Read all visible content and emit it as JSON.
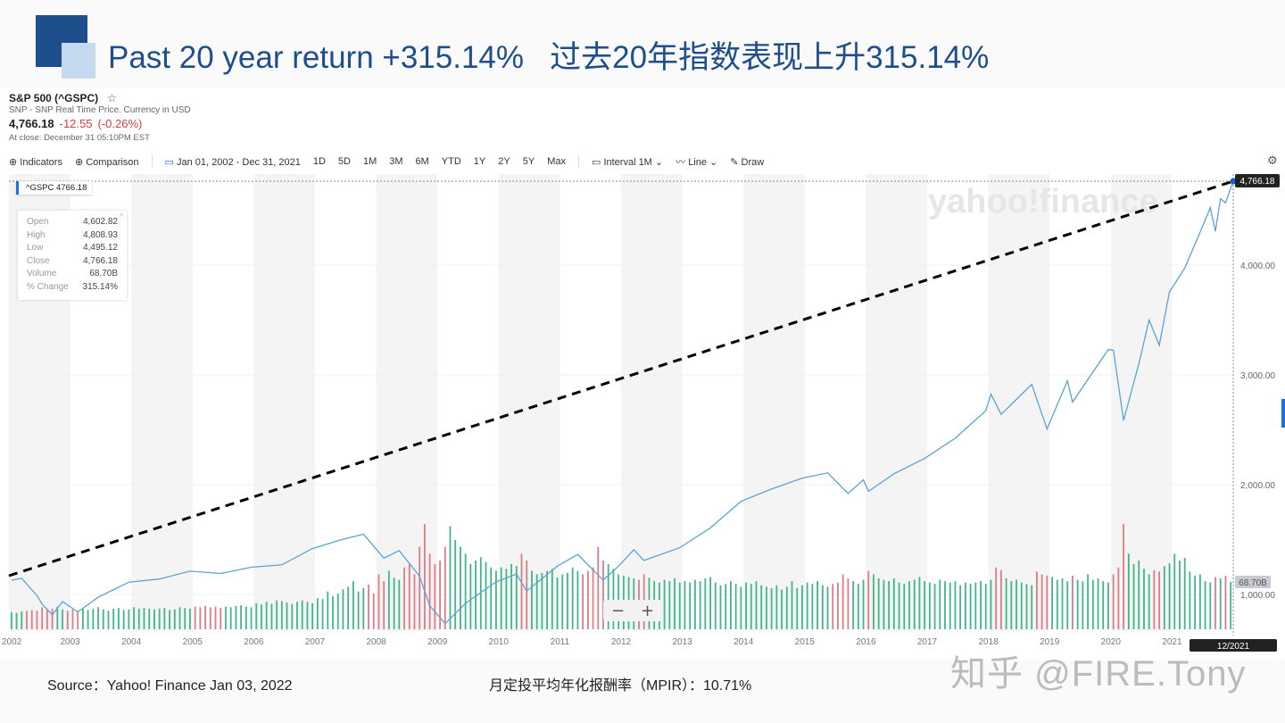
{
  "slide": {
    "title": "Past 20 year return +315.14%   过去20年指数表现上升315.14%",
    "source": "Source：Yahoo! Finance Jan 03, 2022",
    "mpir": "月定投平均年化报酬率（MPIR）：10.71%",
    "watermark": "知乎 @FIRE.Tony"
  },
  "quote": {
    "symbol": "S&P 500 (^GSPC)",
    "star_icon": "☆",
    "subtitle": "SNP - SNP Real Time Price. Currency in USD",
    "price": "4,766.18",
    "change": "-12.55",
    "change_pct": "(-0.26%)",
    "close_time": "At close: December 31 05:10PM EST"
  },
  "toolbar": {
    "indicators": "⊕ Indicators",
    "comparison": "⊕ Comparison",
    "date_range": "Jan 01, 2002 - Dec 31, 2021",
    "ranges": [
      "1D",
      "5D",
      "1M",
      "3M",
      "6M",
      "YTD",
      "1Y",
      "2Y",
      "5Y",
      "Max"
    ],
    "interval": "Interval 1M ⌄",
    "chart_type": "Line ⌄",
    "draw": "Draw",
    "settings_icon": "⚙"
  },
  "legend": "^GSPC 4766.18",
  "tooltip": {
    "rows": [
      [
        "Open",
        "4,602.82"
      ],
      [
        "High",
        "4,808.93"
      ],
      [
        "Low",
        "4,495.12"
      ],
      [
        "Close",
        "4,766.18"
      ],
      [
        "Volume",
        "68.70B"
      ],
      [
        "% Change",
        "315.14%"
      ]
    ]
  },
  "zoom_controls": {
    "minus": "−",
    "plus": "+"
  },
  "colors": {
    "line": "#5ba3d0",
    "up": "#3fb68b",
    "down": "#e07b85",
    "title": "#1f4e8c"
  },
  "chart_data": {
    "type": "line",
    "title": "",
    "xlabel": "",
    "ylabel": "",
    "x_ticks": [
      "2002",
      "2003",
      "2004",
      "2005",
      "2006",
      "2007",
      "2008",
      "2009",
      "2010",
      "2011",
      "2012",
      "2013",
      "2014",
      "2015",
      "2016",
      "2017",
      "2018",
      "2019",
      "2020",
      "2021"
    ],
    "y_ticks": [
      "1,000.00",
      "2,000.00",
      "3,000.00",
      "4,000.00"
    ],
    "ylim": [
      600,
      4800
    ],
    "last_price_label": "4,766.18",
    "last_volume_label": "68.70B",
    "crosshair_date": "12/2021",
    "grid": true,
    "series": [
      {
        "values": [
          [
            "2002-01",
            1130
          ],
          [
            "2002-03",
            1147
          ],
          [
            "2002-06",
            990
          ],
          [
            "2002-07",
            912
          ],
          [
            "2002-09",
            815
          ],
          [
            "2002-11",
            936
          ],
          [
            "2003-02",
            841
          ],
          [
            "2003-06",
            975
          ],
          [
            "2003-12",
            1112
          ],
          [
            "2004-06",
            1141
          ],
          [
            "2004-12",
            1212
          ],
          [
            "2005-06",
            1191
          ],
          [
            "2005-12",
            1248
          ],
          [
            "2006-06",
            1270
          ],
          [
            "2006-12",
            1418
          ],
          [
            "2007-06",
            1503
          ],
          [
            "2007-10",
            1549
          ],
          [
            "2008-02",
            1331
          ],
          [
            "2008-05",
            1400
          ],
          [
            "2008-09",
            1166
          ],
          [
            "2008-11",
            896
          ],
          [
            "2009-02",
            735
          ],
          [
            "2009-06",
            919
          ],
          [
            "2009-12",
            1115
          ],
          [
            "2010-04",
            1187
          ],
          [
            "2010-06",
            1031
          ],
          [
            "2010-12",
            1258
          ],
          [
            "2011-04",
            1364
          ],
          [
            "2011-09",
            1131
          ],
          [
            "2011-12",
            1258
          ],
          [
            "2012-03",
            1408
          ],
          [
            "2012-05",
            1310
          ],
          [
            "2012-12",
            1426
          ],
          [
            "2013-06",
            1606
          ],
          [
            "2013-12",
            1848
          ],
          [
            "2014-06",
            1960
          ],
          [
            "2014-12",
            2059
          ],
          [
            "2015-05",
            2107
          ],
          [
            "2015-09",
            1920
          ],
          [
            "2015-12",
            2044
          ],
          [
            "2016-01",
            1940
          ],
          [
            "2016-06",
            2099
          ],
          [
            "2016-12",
            2239
          ],
          [
            "2017-06",
            2423
          ],
          [
            "2017-12",
            2674
          ],
          [
            "2018-01",
            2824
          ],
          [
            "2018-03",
            2641
          ],
          [
            "2018-09",
            2914
          ],
          [
            "2018-12",
            2507
          ],
          [
            "2019-04",
            2946
          ],
          [
            "2019-05",
            2752
          ],
          [
            "2019-12",
            3231
          ],
          [
            "2020-01",
            3226
          ],
          [
            "2020-03",
            2585
          ],
          [
            "2020-06",
            3100
          ],
          [
            "2020-08",
            3500
          ],
          [
            "2020-10",
            3270
          ],
          [
            "2020-12",
            3756
          ],
          [
            "2021-03",
            3973
          ],
          [
            "2021-06",
            4298
          ],
          [
            "2021-08",
            4523
          ],
          [
            "2021-09",
            4308
          ],
          [
            "2021-10",
            4605
          ],
          [
            "2021-11",
            4567
          ],
          [
            "2021-12",
            4766
          ]
        ]
      }
    ],
    "volume_billions": {
      "2002": [
        25,
        24,
        26,
        27,
        28,
        27,
        32,
        28,
        30,
        33,
        29,
        27
      ],
      "2003": [
        29,
        27,
        30,
        28,
        30,
        32,
        29,
        27,
        30,
        31,
        28,
        29
      ],
      "2004": [
        32,
        30,
        31,
        30,
        29,
        30,
        31,
        28,
        29,
        32,
        31,
        30
      ],
      "2005": [
        33,
        32,
        34,
        32,
        33,
        31,
        33,
        32,
        34,
        35,
        33,
        32
      ],
      "2006": [
        38,
        36,
        40,
        37,
        42,
        41,
        39,
        37,
        40,
        42,
        40,
        38
      ],
      "2007": [
        45,
        44,
        55,
        48,
        52,
        58,
        62,
        70,
        55,
        60,
        65,
        52
      ],
      "2008": [
        80,
        70,
        85,
        75,
        72,
        90,
        95,
        80,
        120,
        153,
        110,
        95
      ],
      "2009": [
        100,
        120,
        150,
        130,
        120,
        110,
        95,
        100,
        105,
        98,
        90,
        85
      ],
      "2010": [
        90,
        88,
        95,
        92,
        110,
        100,
        85,
        80,
        82,
        85,
        88,
        75
      ],
      "2011": [
        80,
        82,
        90,
        85,
        80,
        85,
        90,
        120,
        100,
        95,
        88,
        80
      ],
      "2012": [
        78,
        76,
        74,
        72,
        80,
        75,
        70,
        68,
        72,
        70,
        74,
        68
      ],
      "2013": [
        70,
        68,
        72,
        70,
        74,
        76,
        68,
        64,
        66,
        70,
        66,
        62
      ],
      "2014": [
        68,
        66,
        70,
        64,
        62,
        60,
        64,
        58,
        62,
        70,
        60,
        64
      ],
      "2015": [
        68,
        66,
        70,
        64,
        62,
        66,
        68,
        80,
        74,
        70,
        66,
        72
      ],
      "2016": [
        85,
        80,
        74,
        72,
        70,
        74,
        68,
        66,
        70,
        72,
        76,
        70
      ],
      "2017": [
        68,
        66,
        72,
        70,
        68,
        70,
        64,
        68,
        66,
        68,
        70,
        66
      ],
      "2018": [
        72,
        90,
        86,
        74,
        70,
        72,
        68,
        66,
        64,
        84,
        80,
        78
      ],
      "2019": [
        76,
        72,
        74,
        70,
        78,
        72,
        70,
        80,
        72,
        74,
        70,
        68
      ],
      "2020": [
        80,
        90,
        153,
        110,
        95,
        100,
        88,
        80,
        86,
        84,
        92,
        96
      ],
      "2021": [
        110,
        100,
        104,
        84,
        78,
        80,
        70,
        68,
        76,
        74,
        78,
        69
      ]
    }
  }
}
